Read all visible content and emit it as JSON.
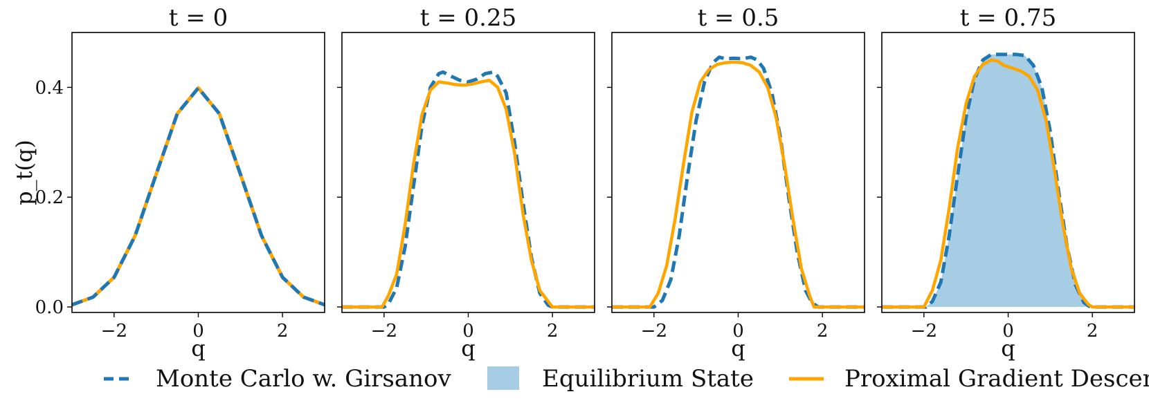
{
  "colors": {
    "mc": "#1f77b4",
    "pgd": "#ffa500",
    "eq": "#a6cde3"
  },
  "chart_data": [
    {
      "type": "line",
      "title": "t = 0",
      "xlabel": "q",
      "ylabel": "p_t(q)",
      "xlim": [
        -3,
        3
      ],
      "ylim": [
        -0.01,
        0.5
      ],
      "xticks": [
        -2,
        0,
        2
      ],
      "xtick_labels": [
        "−2",
        "0",
        "2"
      ],
      "yticks": [
        0.0,
        0.2,
        0.4
      ],
      "ytick_labels": [
        "0.0",
        "0.2",
        "0.4"
      ],
      "series": [
        {
          "name": "Monte Carlo w. Girsanov",
          "x": [
            -3,
            -2.5,
            -2,
            -1.5,
            -1,
            -0.5,
            0,
            0.5,
            1,
            1.5,
            2,
            2.5,
            3
          ],
          "y": [
            0.004,
            0.018,
            0.054,
            0.13,
            0.242,
            0.352,
            0.399,
            0.352,
            0.242,
            0.13,
            0.054,
            0.018,
            0.004
          ]
        },
        {
          "name": "Proximal Gradient Descent",
          "x": [
            -3,
            -2.5,
            -2,
            -1.5,
            -1,
            -0.5,
            0,
            0.5,
            1,
            1.5,
            2,
            2.5,
            3
          ],
          "y": [
            0.004,
            0.018,
            0.054,
            0.13,
            0.242,
            0.352,
            0.399,
            0.352,
            0.242,
            0.13,
            0.054,
            0.018,
            0.004
          ]
        }
      ]
    },
    {
      "type": "line",
      "title": "t = 0.25",
      "xlabel": "q",
      "xlim": [
        -3,
        3
      ],
      "ylim": [
        -0.01,
        0.5
      ],
      "xticks": [
        -2,
        0,
        2
      ],
      "xtick_labels": [
        "−2",
        "0",
        "2"
      ],
      "yticks": [
        0.0,
        0.2,
        0.4
      ],
      "ytick_labels": [
        "",
        "",
        ""
      ],
      "series": [
        {
          "name": "Monte Carlo w. Girsanov",
          "x": [
            -3,
            -2,
            -1.9,
            -1.7,
            -1.5,
            -1.3,
            -1.1,
            -0.9,
            -0.7,
            -0.6,
            -0.4,
            -0.2,
            0,
            0.2,
            0.4,
            0.6,
            0.7,
            0.9,
            1.1,
            1.3,
            1.5,
            1.7,
            1.9,
            2,
            3
          ],
          "y": [
            0,
            0,
            0.005,
            0.035,
            0.11,
            0.22,
            0.33,
            0.4,
            0.425,
            0.428,
            0.42,
            0.413,
            0.41,
            0.415,
            0.425,
            0.428,
            0.42,
            0.39,
            0.3,
            0.19,
            0.09,
            0.025,
            0.003,
            0,
            0
          ]
        },
        {
          "name": "Proximal Gradient Descent",
          "x": [
            -3,
            -2.05,
            -1.9,
            -1.7,
            -1.5,
            -1.3,
            -1.1,
            -0.9,
            -0.7,
            -0.5,
            -0.3,
            -0.1,
            0.1,
            0.3,
            0.5,
            0.7,
            0.9,
            1.1,
            1.3,
            1.5,
            1.7,
            1.85,
            2,
            3
          ],
          "y": [
            0,
            0,
            0.02,
            0.06,
            0.15,
            0.26,
            0.35,
            0.395,
            0.41,
            0.408,
            0.405,
            0.404,
            0.406,
            0.41,
            0.413,
            0.4,
            0.36,
            0.28,
            0.17,
            0.085,
            0.03,
            0.015,
            0,
            0
          ]
        }
      ]
    },
    {
      "type": "line",
      "title": "t = 0.5",
      "xlabel": "q",
      "xlim": [
        -3,
        3
      ],
      "ylim": [
        -0.01,
        0.5
      ],
      "xticks": [
        -2,
        0,
        2
      ],
      "xtick_labels": [
        "−2",
        "0",
        "2"
      ],
      "yticks": [
        0.0,
        0.2,
        0.4
      ],
      "ytick_labels": [
        "",
        "",
        ""
      ],
      "series": [
        {
          "name": "Monte Carlo w. Girsanov",
          "x": [
            -3,
            -2,
            -1.8,
            -1.6,
            -1.4,
            -1.2,
            -1,
            -0.8,
            -0.6,
            -0.45,
            -0.3,
            -0.1,
            0.1,
            0.3,
            0.45,
            0.6,
            0.8,
            1,
            1.2,
            1.4,
            1.6,
            1.75,
            1.9,
            3
          ],
          "y": [
            0,
            0,
            0.012,
            0.05,
            0.13,
            0.24,
            0.34,
            0.41,
            0.445,
            0.455,
            0.452,
            0.453,
            0.452,
            0.455,
            0.45,
            0.435,
            0.39,
            0.31,
            0.2,
            0.1,
            0.03,
            0.008,
            0,
            0
          ]
        },
        {
          "name": "Proximal Gradient Descent",
          "x": [
            -3,
            -2.1,
            -1.9,
            -1.7,
            -1.5,
            -1.3,
            -1.1,
            -0.9,
            -0.7,
            -0.5,
            -0.3,
            -0.1,
            0.1,
            0.3,
            0.5,
            0.7,
            0.9,
            1.1,
            1.3,
            1.5,
            1.7,
            1.8,
            3
          ],
          "y": [
            0,
            0,
            0.025,
            0.075,
            0.16,
            0.26,
            0.355,
            0.41,
            0.432,
            0.442,
            0.445,
            0.446,
            0.445,
            0.44,
            0.428,
            0.4,
            0.345,
            0.26,
            0.16,
            0.07,
            0.02,
            0,
            0
          ]
        }
      ]
    },
    {
      "type": "area",
      "title": "t = 0.75",
      "xlabel": "q",
      "xlim": [
        -3,
        3
      ],
      "ylim": [
        -0.01,
        0.5
      ],
      "xticks": [
        -2,
        0,
        2
      ],
      "xtick_labels": [
        "−2",
        "0",
        "2"
      ],
      "yticks": [
        0.0,
        0.2,
        0.4
      ],
      "ytick_labels": [
        "",
        "",
        ""
      ],
      "series": [
        {
          "name": "Equilibrium State",
          "x": [
            -1.95,
            -1.8,
            -1.6,
            -1.4,
            -1.2,
            -1,
            -0.8,
            -0.6,
            -0.4,
            -0.2,
            0,
            0.2,
            0.4,
            0.6,
            0.8,
            1,
            1.2,
            1.4,
            1.6,
            1.8,
            1.95
          ],
          "y": [
            0,
            0.01,
            0.045,
            0.13,
            0.24,
            0.345,
            0.415,
            0.45,
            0.46,
            0.46,
            0.46,
            0.46,
            0.458,
            0.44,
            0.4,
            0.32,
            0.21,
            0.11,
            0.04,
            0.008,
            0
          ]
        },
        {
          "name": "Monte Carlo w. Girsanov",
          "x": [
            -3,
            -1.95,
            -1.8,
            -1.6,
            -1.4,
            -1.2,
            -1,
            -0.8,
            -0.6,
            -0.4,
            -0.2,
            0,
            0.2,
            0.4,
            0.6,
            0.8,
            1,
            1.2,
            1.4,
            1.6,
            1.8,
            1.95,
            3
          ],
          "y": [
            0,
            0,
            0.01,
            0.045,
            0.13,
            0.24,
            0.345,
            0.415,
            0.45,
            0.46,
            0.46,
            0.46,
            0.46,
            0.458,
            0.44,
            0.4,
            0.32,
            0.21,
            0.11,
            0.04,
            0.008,
            0,
            0
          ]
        },
        {
          "name": "Proximal Gradient Descent",
          "x": [
            -3,
            -2,
            -1.8,
            -1.6,
            -1.4,
            -1.2,
            -1,
            -0.8,
            -0.6,
            -0.4,
            -0.25,
            -0.1,
            0.1,
            0.3,
            0.5,
            0.7,
            0.9,
            1.1,
            1.3,
            1.5,
            1.7,
            1.9,
            2,
            3
          ],
          "y": [
            0,
            0,
            0.03,
            0.085,
            0.18,
            0.29,
            0.37,
            0.42,
            0.442,
            0.45,
            0.448,
            0.44,
            0.435,
            0.43,
            0.42,
            0.395,
            0.34,
            0.25,
            0.15,
            0.07,
            0.025,
            0.005,
            0,
            0
          ]
        }
      ]
    }
  ],
  "legend": {
    "items": [
      {
        "label": "Monte Carlo w. Girsanov",
        "kind": "dashed-line",
        "color": "#1f77b4"
      },
      {
        "label": "Equilibrium State",
        "kind": "patch",
        "color": "#a6cde3"
      },
      {
        "label": "Proximal Gradient Descent",
        "kind": "line",
        "color": "#ffa500"
      }
    ]
  }
}
